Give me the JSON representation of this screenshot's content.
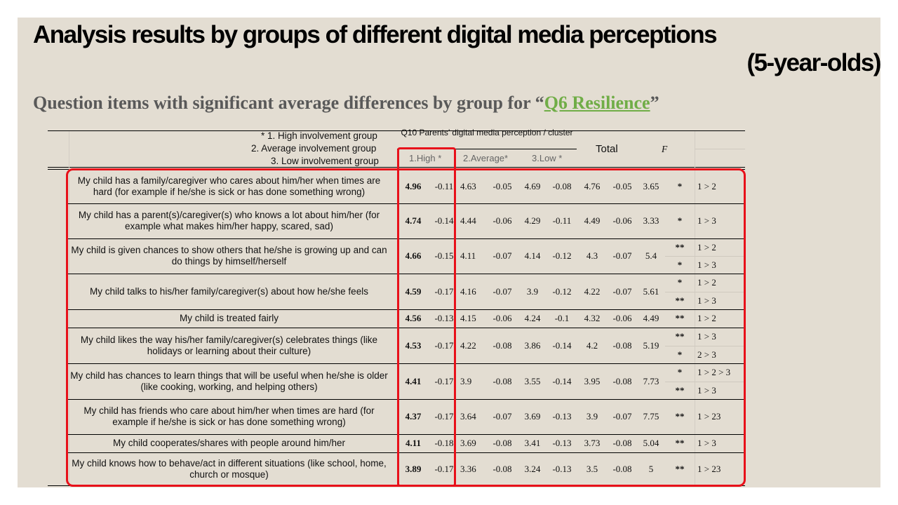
{
  "title": {
    "line1": "Analysis results by groups of different digital media perceptions",
    "line2": "(5-year-olds)"
  },
  "subtitle": {
    "prefix": "Question items with significant average differences by group for “",
    "link": "Q6 Resilience",
    "suffix": "”"
  },
  "table": {
    "group_legend": [
      "* 1. High involvement group",
      "2. Average involvement group",
      "3. Low involvement group"
    ],
    "perception_header": "Q10 Parents’ digital media perception / cluster",
    "total_header": "Total",
    "f_header": "F",
    "group_headers": [
      "1.High *",
      "2.Average*",
      "3.Low *"
    ],
    "rows": [
      {
        "question": "My child has a family/caregiver who cares about him/her when times are hard (for example if he/she is sick or has done something wrong)",
        "high": "4.96",
        "high_z": "-0.11",
        "avg": "4.63",
        "avg_z": "-0.05",
        "low": "4.69",
        "low_z": "-0.08",
        "total": "4.76",
        "total_z": "-0.05",
        "f": "3.65",
        "sig": [
          {
            "stars": "*",
            "comparison": "1 > 2"
          }
        ]
      },
      {
        "question": "My child has a parent(s)/caregiver(s) who knows a lot about him/her (for example what makes him/her happy, scared, sad)",
        "high": "4.74",
        "high_z": "-0.14",
        "avg": "4.44",
        "avg_z": "-0.06",
        "low": "4.29",
        "low_z": "-0.11",
        "total": "4.49",
        "total_z": "-0.06",
        "f": "3.33",
        "sig": [
          {
            "stars": "*",
            "comparison": "1 > 3"
          }
        ]
      },
      {
        "question": "My child is given chances to show others that he/she is growing up and can do things by himself/herself",
        "high": "4.66",
        "high_z": "-0.15",
        "avg": "4.11",
        "avg_z": "-0.07",
        "low": "4.14",
        "low_z": "-0.12",
        "total": "4.3",
        "total_z": "-0.07",
        "f": "5.4",
        "sig": [
          {
            "stars": "**",
            "comparison": "1 > 2"
          },
          {
            "stars": "*",
            "comparison": "1 > 3"
          }
        ]
      },
      {
        "question": "My child talks to his/her family/caregiver(s) about how he/she feels",
        "high": "4.59",
        "high_z": "-0.17",
        "avg": "4.16",
        "avg_z": "-0.07",
        "low": "3.9",
        "low_z": "-0.12",
        "total": "4.22",
        "total_z": "-0.07",
        "f": "5.61",
        "sig": [
          {
            "stars": "*",
            "comparison": "1 > 2"
          },
          {
            "stars": "**",
            "comparison": "1 > 3"
          }
        ]
      },
      {
        "question": "My child is treated fairly",
        "high": "4.56",
        "high_z": "-0.13",
        "avg": "4.15",
        "avg_z": "-0.06",
        "low": "4.24",
        "low_z": "-0.1",
        "total": "4.32",
        "total_z": "-0.06",
        "f": "4.49",
        "sig": [
          {
            "stars": "**",
            "comparison": "1 > 2"
          }
        ]
      },
      {
        "question": "My child likes the way his/her family/caregiver(s) celebrates things (like holidays or learning about their culture)",
        "high": "4.53",
        "high_z": "-0.17",
        "avg": "4.22",
        "avg_z": "-0.08",
        "low": "3.86",
        "low_z": "-0.14",
        "total": "4.2",
        "total_z": "-0.08",
        "f": "5.19",
        "sig": [
          {
            "stars": "**",
            "comparison": "1 > 3"
          },
          {
            "stars": "*",
            "comparison": "2 > 3"
          }
        ]
      },
      {
        "question": "My child has chances to learn things that will be useful when he/she is older (like cooking, working, and helping others)",
        "high": "4.41",
        "high_z": "-0.17",
        "avg": "3.9",
        "avg_z": "-0.08",
        "low": "3.55",
        "low_z": "-0.14",
        "total": "3.95",
        "total_z": "-0.08",
        "f": "7.73",
        "sig": [
          {
            "stars": "*",
            "comparison": "1 > 2 > 3"
          },
          {
            "stars": "**",
            "comparison": "1 > 3"
          }
        ]
      },
      {
        "question": "My child has friends who care about him/her when times are hard (for example if he/she is sick or has done something wrong)",
        "high": "4.37",
        "high_z": "-0.17",
        "avg": "3.64",
        "avg_z": "-0.07",
        "low": "3.69",
        "low_z": "-0.13",
        "total": "3.9",
        "total_z": "-0.07",
        "f": "7.75",
        "sig": [
          {
            "stars": "**",
            "comparison": "1 > 23"
          }
        ]
      },
      {
        "question": "My child cooperates/shares with people around him/her",
        "high": "4.11",
        "high_z": "-0.18",
        "avg": "3.69",
        "avg_z": "-0.08",
        "low": "3.41",
        "low_z": "-0.13",
        "total": "3.73",
        "total_z": "-0.08",
        "f": "5.04",
        "sig": [
          {
            "stars": "**",
            "comparison": "1 > 3"
          }
        ]
      },
      {
        "question": "My child knows how to behave/act in different situations (like school, home, church or mosque)",
        "high": "3.89",
        "high_z": "-0.17",
        "avg": "3.36",
        "avg_z": "-0.08",
        "low": "3.24",
        "low_z": "-0.13",
        "total": "3.5",
        "total_z": "-0.08",
        "f": "5",
        "sig": [
          {
            "stars": "**",
            "comparison": "1 > 23"
          }
        ]
      }
    ]
  },
  "highlight_color": "#e8101a",
  "link_color": "#70ad47"
}
